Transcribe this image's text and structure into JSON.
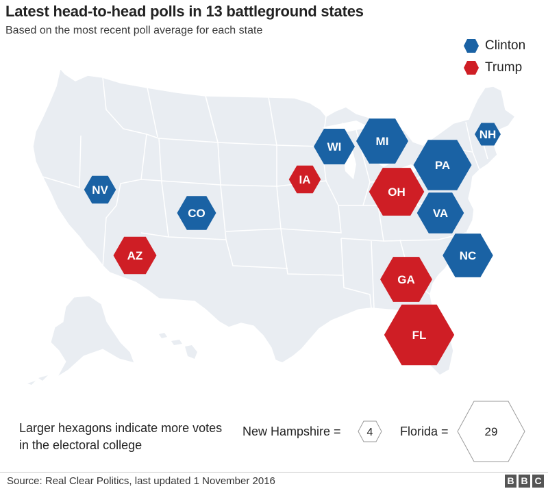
{
  "header": {
    "title": "Latest head-to-head polls in 13 battleground states",
    "subtitle": "Based on the most recent poll average for each state"
  },
  "legend": [
    {
      "label": "Clinton",
      "color": "#1a62a4"
    },
    {
      "label": "Trump",
      "color": "#cf1e25"
    }
  ],
  "states": [
    {
      "abbr": "NV",
      "leader": "Clinton",
      "electoral_votes": 6
    },
    {
      "abbr": "CO",
      "leader": "Clinton",
      "electoral_votes": 9
    },
    {
      "abbr": "AZ",
      "leader": "Trump",
      "electoral_votes": 11
    },
    {
      "abbr": "IA",
      "leader": "Trump",
      "electoral_votes": 6
    },
    {
      "abbr": "WI",
      "leader": "Clinton",
      "electoral_votes": 10
    },
    {
      "abbr": "MI",
      "leader": "Clinton",
      "electoral_votes": 16
    },
    {
      "abbr": "OH",
      "leader": "Trump",
      "electoral_votes": 18
    },
    {
      "abbr": "PA",
      "leader": "Clinton",
      "electoral_votes": 20
    },
    {
      "abbr": "VA",
      "leader": "Clinton",
      "electoral_votes": 13
    },
    {
      "abbr": "NC",
      "leader": "Clinton",
      "electoral_votes": 15
    },
    {
      "abbr": "GA",
      "leader": "Trump",
      "electoral_votes": 16
    },
    {
      "abbr": "FL",
      "leader": "Trump",
      "electoral_votes": 29
    },
    {
      "abbr": "NH",
      "leader": "Clinton",
      "electoral_votes": 4
    }
  ],
  "scale": {
    "note": "Larger hexagons indicate more votes in the electoral college",
    "small_label": "New Hampshire =",
    "small_value": "4",
    "large_label": "Florida =",
    "large_value": "29"
  },
  "footer": {
    "source": "Source: Real Clear Politics, last updated 1 November 2016",
    "logo": [
      "B",
      "B",
      "C"
    ]
  },
  "colors": {
    "map_fill": "#e9edf2",
    "map_border": "#ffffff"
  }
}
